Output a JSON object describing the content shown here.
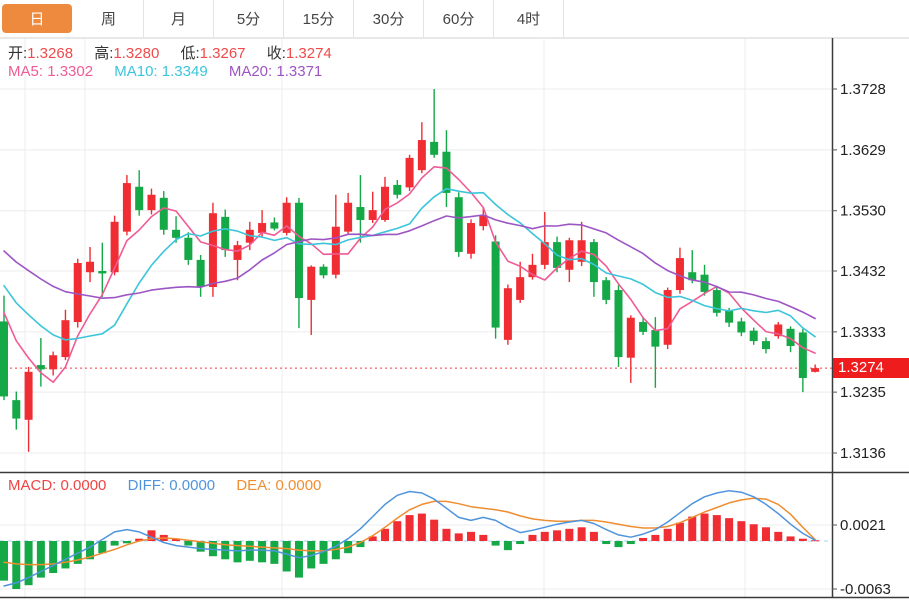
{
  "tabs": {
    "items": [
      {
        "label": "日",
        "active": true
      },
      {
        "label": "周",
        "active": false
      },
      {
        "label": "月",
        "active": false
      },
      {
        "label": "5分",
        "active": false
      },
      {
        "label": "15分",
        "active": false
      },
      {
        "label": "30分",
        "active": false
      },
      {
        "label": "60分",
        "active": false
      },
      {
        "label": "4时",
        "active": false
      }
    ]
  },
  "info": {
    "open_label": "开:",
    "open": "1.3268",
    "high_label": "高:",
    "high": "1.3280",
    "low_label": "低:",
    "low": "1.3267",
    "close_label": "收:",
    "close": "1.3274",
    "ma5_label": "MA5:",
    "ma5": "1.3302",
    "ma10_label": "MA10:",
    "ma10": "1.3349",
    "ma20_label": "MA20:",
    "ma20": "1.3371",
    "macd_label": "MACD:",
    "macd": "0.0000",
    "diff_label": "DIFF:",
    "diff": "0.0000",
    "dea_label": "DEA:",
    "dea": "0.0000"
  },
  "price_axis": {
    "ticks": [
      "1.3728",
      "1.3629",
      "1.3530",
      "1.3432",
      "1.3333",
      "1.3235",
      "1.3136"
    ],
    "current_label": "1.3274"
  },
  "macd_axis": {
    "ticks": [
      "0.0021",
      "-0.0063"
    ]
  },
  "colors": {
    "accent_orange": "#ee8a3d",
    "candle_up_red": "#ef2d33",
    "candle_down_green": "#14a847",
    "info_value_red": "#f04a4a",
    "tag_red": "#ee1c1c",
    "ma5_pink": "#ef5b95",
    "ma10_cyan": "#3cc5da",
    "ma20_purple": "#9d55c4",
    "macd_text_red": "#ef4444",
    "diff_blue": "#4f94dd",
    "dea_orange": "#ef8d31",
    "grid_gray": "#ececec",
    "axis_text": "#222222",
    "border_dark": "#3a3a3a",
    "zero_dash_blue": "#a8cdf0",
    "dotted_price_red": "#f53b3b"
  },
  "chart_data": {
    "type": "candlestick+macd",
    "interval": "日",
    "current_price": 1.3274,
    "price_ticks": [
      1.3728,
      1.3629,
      1.353,
      1.3432,
      1.3333,
      1.3235,
      1.3136
    ],
    "macd_ticks": [
      0.0021,
      -0.0063
    ],
    "macd_unit": 0.0001,
    "v_gridlines_x": [
      25,
      85,
      282,
      544,
      745
    ],
    "candles_ohlc": [
      [
        1.335,
        1.3392,
        1.3222,
        1.3228
      ],
      [
        1.3222,
        1.3236,
        1.3174,
        1.3192
      ],
      [
        1.319,
        1.3276,
        1.3138,
        1.3268
      ],
      [
        1.3279,
        1.3323,
        1.3244,
        1.3272
      ],
      [
        1.3272,
        1.3301,
        1.3262,
        1.3295
      ],
      [
        1.3292,
        1.3369,
        1.3287,
        1.3352
      ],
      [
        1.3349,
        1.3452,
        1.334,
        1.3445
      ],
      [
        1.343,
        1.3471,
        1.3414,
        1.3447
      ],
      [
        1.3432,
        1.3478,
        1.339,
        1.3428
      ],
      [
        1.343,
        1.3522,
        1.3425,
        1.3512
      ],
      [
        1.3496,
        1.3588,
        1.349,
        1.3575
      ],
      [
        1.3569,
        1.3596,
        1.3522,
        1.3531
      ],
      [
        1.3531,
        1.3566,
        1.3524,
        1.3556
      ],
      [
        1.3551,
        1.3562,
        1.3491,
        1.3499
      ],
      [
        1.3499,
        1.3521,
        1.3478,
        1.3486
      ],
      [
        1.3486,
        1.3495,
        1.3442,
        1.345
      ],
      [
        1.345,
        1.3458,
        1.339,
        1.3406
      ],
      [
        1.3406,
        1.3543,
        1.339,
        1.3526
      ],
      [
        1.352,
        1.3532,
        1.3455,
        1.3466
      ],
      [
        1.345,
        1.3481,
        1.3417,
        1.3474
      ],
      [
        1.3478,
        1.3512,
        1.3466,
        1.3499
      ],
      [
        1.3494,
        1.3531,
        1.3488,
        1.351
      ],
      [
        1.3511,
        1.3519,
        1.3498,
        1.3501
      ],
      [
        1.3494,
        1.3552,
        1.349,
        1.3543
      ],
      [
        1.3543,
        1.3551,
        1.3339,
        1.3388
      ],
      [
        1.3385,
        1.3441,
        1.3328,
        1.3439
      ],
      [
        1.3439,
        1.3443,
        1.342,
        1.3425
      ],
      [
        1.3426,
        1.3556,
        1.342,
        1.3504
      ],
      [
        1.3496,
        1.3559,
        1.3492,
        1.3543
      ],
      [
        1.3536,
        1.3588,
        1.3478,
        1.3515
      ],
      [
        1.3515,
        1.3561,
        1.351,
        1.3531
      ],
      [
        1.3515,
        1.3585,
        1.3512,
        1.3569
      ],
      [
        1.3572,
        1.358,
        1.355,
        1.3556
      ],
      [
        1.3568,
        1.3621,
        1.3562,
        1.3616
      ],
      [
        1.3596,
        1.3674,
        1.3591,
        1.3645
      ],
      [
        1.3642,
        1.3728,
        1.3616,
        1.3621
      ],
      [
        1.3626,
        1.3661,
        1.3536,
        1.3559
      ],
      [
        1.3552,
        1.356,
        1.3455,
        1.3463
      ],
      [
        1.346,
        1.3516,
        1.3452,
        1.351
      ],
      [
        1.3505,
        1.3536,
        1.3498,
        1.3523
      ],
      [
        1.348,
        1.349,
        1.3322,
        1.334
      ],
      [
        1.332,
        1.341,
        1.3312,
        1.3404
      ],
      [
        1.3385,
        1.3447,
        1.338,
        1.3422
      ],
      [
        1.3422,
        1.346,
        1.3418,
        1.3442
      ],
      [
        1.3442,
        1.3528,
        1.3435,
        1.3479
      ],
      [
        1.3479,
        1.3488,
        1.343,
        1.3437
      ],
      [
        1.3434,
        1.3486,
        1.3414,
        1.3482
      ],
      [
        1.3447,
        1.3512,
        1.344,
        1.3482
      ],
      [
        1.3479,
        1.3484,
        1.339,
        1.3414
      ],
      [
        1.3417,
        1.3422,
        1.3378,
        1.3385
      ],
      [
        1.3401,
        1.3409,
        1.3276,
        1.3292
      ],
      [
        1.3291,
        1.336,
        1.325,
        1.3356
      ],
      [
        1.3349,
        1.3357,
        1.3328,
        1.3333
      ],
      [
        1.3336,
        1.3357,
        1.3242,
        1.3309
      ],
      [
        1.3312,
        1.3405,
        1.3305,
        1.3401
      ],
      [
        1.3401,
        1.347,
        1.3395,
        1.3453
      ],
      [
        1.343,
        1.3466,
        1.3412,
        1.3417
      ],
      [
        1.3426,
        1.3442,
        1.3392,
        1.3398
      ],
      [
        1.3401,
        1.3406,
        1.3358,
        1.3364
      ],
      [
        1.3367,
        1.3372,
        1.3341,
        1.3348
      ],
      [
        1.335,
        1.3356,
        1.3326,
        1.3332
      ],
      [
        1.3335,
        1.334,
        1.3312,
        1.3318
      ],
      [
        1.3318,
        1.3324,
        1.3298,
        1.3305
      ],
      [
        1.3326,
        1.3349,
        1.3322,
        1.3345
      ],
      [
        1.3338,
        1.3342,
        1.33,
        1.331
      ],
      [
        1.3332,
        1.3338,
        1.3235,
        1.3258
      ],
      [
        1.3268,
        1.328,
        1.3267,
        1.3274
      ]
    ],
    "ma_windows": [
      5,
      10,
      20
    ],
    "ma_seed_closes": [
      1.356,
      1.3555,
      1.3548,
      1.3542,
      1.3534,
      1.3526,
      1.3519,
      1.3511,
      1.3502,
      1.3492,
      1.3482,
      1.3472,
      1.3462,
      1.3452,
      1.3442,
      1.3432,
      1.3421,
      1.3408,
      1.3392,
      1.3372
    ],
    "macd_hist": [
      -52,
      -63,
      -58,
      -48,
      -42,
      -36,
      -30,
      -24,
      -16,
      -6,
      -3,
      3,
      14,
      8,
      3,
      -6,
      -14,
      -20,
      -24,
      -28,
      -26,
      -28,
      -30,
      -40,
      -48,
      -36,
      -30,
      -24,
      -16,
      -8,
      6,
      16,
      26,
      34,
      36,
      28,
      16,
      10,
      12,
      8,
      -6,
      -12,
      -4,
      8,
      12,
      14,
      16,
      18,
      12,
      -4,
      -8,
      -4,
      4,
      8,
      16,
      24,
      32,
      36,
      34,
      30,
      26,
      22,
      18,
      12,
      6,
      3,
      1
    ],
    "diff_line": [
      -59,
      -55,
      -48,
      -40,
      -32,
      -24,
      -16,
      -8,
      2,
      12,
      15,
      12,
      5,
      -2,
      -6,
      -8,
      -10,
      -11,
      -12,
      -13,
      -12,
      -12,
      -13,
      -17,
      -22,
      -19,
      -14,
      -7,
      3,
      16,
      32,
      48,
      60,
      65,
      63,
      55,
      43,
      31,
      27,
      31,
      27,
      18,
      11,
      14,
      18,
      22,
      25,
      27,
      23,
      15,
      8,
      5,
      9,
      15,
      25,
      37,
      49,
      58,
      63,
      66,
      64,
      58,
      48,
      36,
      22,
      10,
      1
    ],
    "dea_line": [
      -28,
      -30,
      -31,
      -31,
      -30,
      -28,
      -25,
      -21,
      -16,
      -11,
      -5,
      0,
      3,
      4,
      3,
      1,
      -1,
      -3,
      -5,
      -6,
      -7,
      -8,
      -9,
      -10,
      -12,
      -13,
      -13,
      -11,
      -8,
      -2,
      7,
      18,
      30,
      41,
      48,
      52,
      52,
      49,
      45,
      43,
      41,
      38,
      33,
      29,
      27,
      26,
      26,
      27,
      27,
      25,
      22,
      19,
      17,
      17,
      19,
      24,
      31,
      38,
      44,
      50,
      54,
      56,
      55,
      48,
      35,
      18,
      2
    ]
  }
}
